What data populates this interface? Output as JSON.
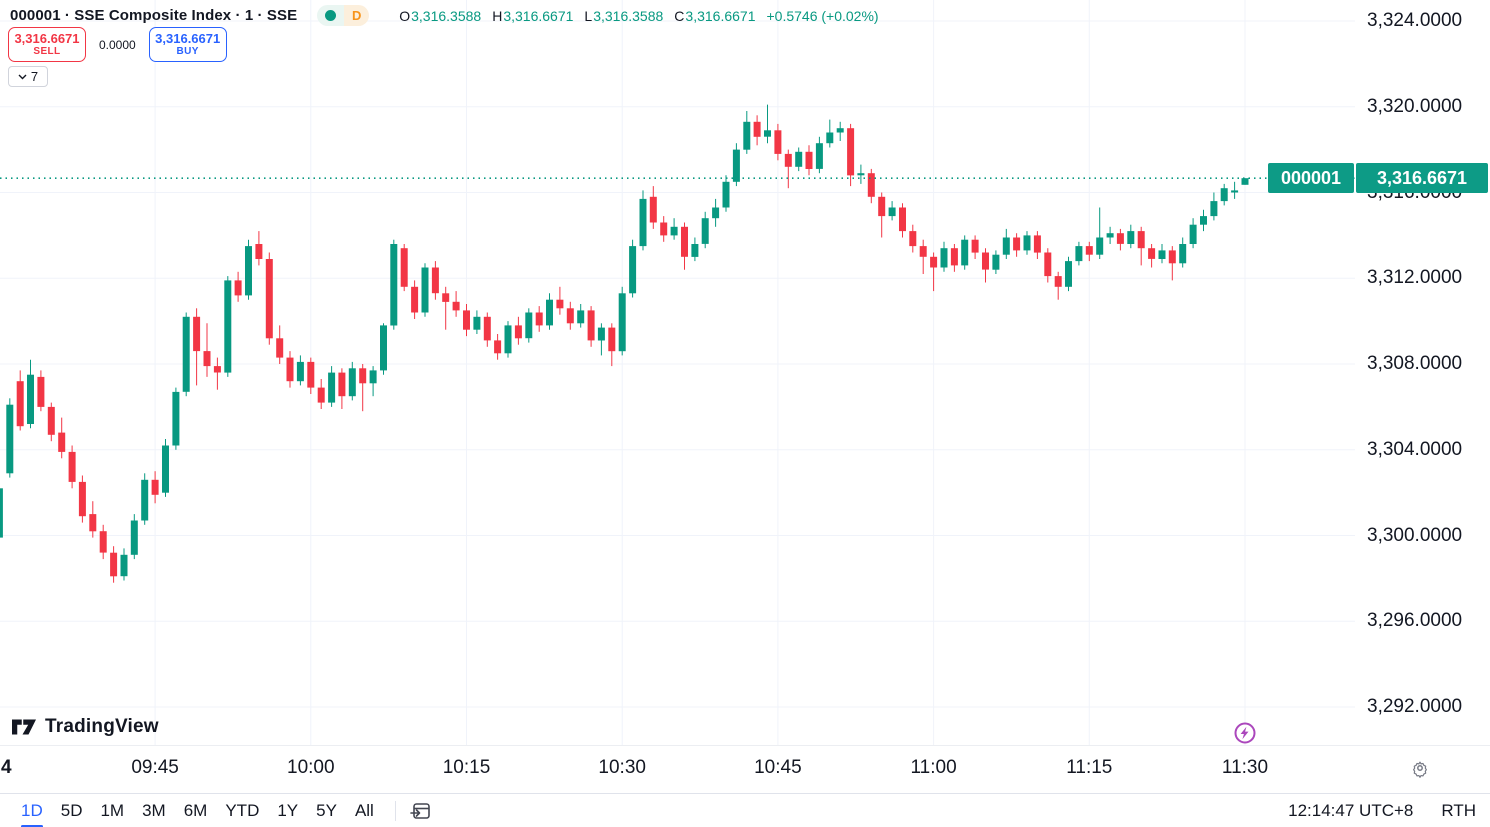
{
  "header": {
    "symbol_title": "000001 · SSE Composite Index · 1 · SSE",
    "interval_badge": "D",
    "ohlc_items": [
      {
        "k": "O",
        "v": "3,316.3588"
      },
      {
        "k": "H",
        "v": "3,316.6671"
      },
      {
        "k": "L",
        "v": "3,316.3588"
      },
      {
        "k": "C",
        "v": "3,316.6671"
      }
    ],
    "change": "+0.5746 (+0.02%)"
  },
  "trade_panel": {
    "sell_price": "3,316.6671",
    "sell_label": "SELL",
    "spread": "0.0000",
    "buy_price": "3,316.6671",
    "buy_label": "BUY"
  },
  "drawings_dropdown": {
    "count": "7"
  },
  "price_axis": {
    "last_price_label": {
      "symbol": "000001",
      "price": "3,316.6671"
    }
  },
  "time_axis": {
    "partial_left_label": "4"
  },
  "logo": {
    "text": "TradingView"
  },
  "toolbar": {
    "ranges": [
      "1D",
      "5D",
      "1M",
      "3M",
      "6M",
      "YTD",
      "1Y",
      "5Y",
      "All"
    ],
    "active_range": "1D",
    "clock": "12:14:47 UTC+8",
    "session": "RTH"
  },
  "colors": {
    "up": "#089981",
    "down": "#f23645",
    "grid": "#f0f3fa",
    "accent_blue": "#2962ff",
    "sell_red": "#f23645",
    "badge_orange": "#f7931a",
    "label_teal": "#0d9b86",
    "lightning_purple": "#ab47bc",
    "text": "#131722",
    "muted": "#787b86"
  },
  "chart_data": {
    "type": "candlestick",
    "symbol": "000001",
    "name": "SSE Composite Index",
    "exchange": "SSE",
    "interval": "1",
    "session_start": "09:30",
    "interval_minutes": 1,
    "last_bar": {
      "time": "11:30",
      "open": 3316.3588,
      "high": 3316.6671,
      "low": 3316.3588,
      "close": 3316.6671,
      "change": 0.5746,
      "change_pct": 0.02
    },
    "ylim": [
      3292,
      3324
    ],
    "grid": true,
    "price_ticks": [
      {
        "value": 3324,
        "label": "3,324.0000"
      },
      {
        "value": 3320,
        "label": "3,320.0000"
      },
      {
        "value": 3316,
        "label": "3,316.0000"
      },
      {
        "value": 3312,
        "label": "3,312.0000"
      },
      {
        "value": 3308,
        "label": "3,308.0000"
      },
      {
        "value": 3304,
        "label": "3,304.0000"
      },
      {
        "value": 3300,
        "label": "3,300.0000"
      },
      {
        "value": 3296,
        "label": "3,296.0000"
      },
      {
        "value": 3292,
        "label": "3,292.0000"
      }
    ],
    "time_ticks": [
      {
        "minute": 15,
        "label": "09:45"
      },
      {
        "minute": 30,
        "label": "10:00"
      },
      {
        "minute": 45,
        "label": "10:15"
      },
      {
        "minute": 60,
        "label": "10:30"
      },
      {
        "minute": 75,
        "label": "10:45"
      },
      {
        "minute": 90,
        "label": "11:00"
      },
      {
        "minute": 105,
        "label": "11:15"
      },
      {
        "minute": 120,
        "label": "11:30"
      }
    ],
    "candles_format": [
      "open",
      "high",
      "low",
      "close"
    ],
    "candles": [
      [
        3299.9,
        3302.5,
        3299.6,
        3302.2
      ],
      [
        3302.9,
        3306.4,
        3302.7,
        3306.1
      ],
      [
        3307.2,
        3307.7,
        3304.9,
        3305.1
      ],
      [
        3305.2,
        3308.2,
        3305.0,
        3307.5
      ],
      [
        3307.4,
        3307.7,
        3305.8,
        3306.0
      ],
      [
        3306.0,
        3306.2,
        3304.4,
        3304.7
      ],
      [
        3304.8,
        3305.5,
        3303.6,
        3303.9
      ],
      [
        3303.9,
        3304.2,
        3302.2,
        3302.5
      ],
      [
        3302.5,
        3302.8,
        3300.6,
        3300.9
      ],
      [
        3301.0,
        3301.6,
        3299.9,
        3300.2
      ],
      [
        3300.2,
        3300.5,
        3298.9,
        3299.2
      ],
      [
        3299.2,
        3299.5,
        3297.8,
        3298.1
      ],
      [
        3298.1,
        3299.4,
        3297.9,
        3299.1
      ],
      [
        3299.1,
        3301.0,
        3298.9,
        3300.7
      ],
      [
        3300.7,
        3302.9,
        3300.5,
        3302.6
      ],
      [
        3302.6,
        3303.0,
        3301.5,
        3301.9
      ],
      [
        3302.0,
        3304.5,
        3301.8,
        3304.2
      ],
      [
        3304.2,
        3306.9,
        3304.0,
        3306.7
      ],
      [
        3306.7,
        3310.4,
        3306.5,
        3310.2
      ],
      [
        3310.2,
        3310.6,
        3307.0,
        3308.6
      ],
      [
        3308.6,
        3309.9,
        3307.4,
        3307.9
      ],
      [
        3307.9,
        3308.3,
        3306.8,
        3307.6
      ],
      [
        3307.6,
        3312.1,
        3307.4,
        3311.9
      ],
      [
        3311.9,
        3312.3,
        3310.9,
        3311.2
      ],
      [
        3311.2,
        3313.8,
        3311.0,
        3313.5
      ],
      [
        3313.6,
        3314.2,
        3312.6,
        3312.9
      ],
      [
        3312.9,
        3313.2,
        3308.9,
        3309.2
      ],
      [
        3309.2,
        3309.8,
        3308.0,
        3308.3
      ],
      [
        3308.3,
        3308.6,
        3306.9,
        3307.2
      ],
      [
        3307.2,
        3308.4,
        3307.0,
        3308.1
      ],
      [
        3308.1,
        3308.3,
        3306.6,
        3306.9
      ],
      [
        3306.9,
        3307.3,
        3305.9,
        3306.2
      ],
      [
        3306.2,
        3307.9,
        3306.0,
        3307.6
      ],
      [
        3307.6,
        3307.8,
        3305.9,
        3306.5
      ],
      [
        3306.5,
        3308.1,
        3306.3,
        3307.8
      ],
      [
        3307.8,
        3308.0,
        3305.8,
        3307.1
      ],
      [
        3307.1,
        3307.9,
        3306.5,
        3307.7
      ],
      [
        3307.7,
        3309.9,
        3307.5,
        3309.8
      ],
      [
        3309.8,
        3313.8,
        3309.6,
        3313.6
      ],
      [
        3313.4,
        3313.6,
        3311.4,
        3311.6
      ],
      [
        3311.6,
        3311.9,
        3310.1,
        3310.4
      ],
      [
        3310.4,
        3312.7,
        3310.2,
        3312.5
      ],
      [
        3312.5,
        3312.8,
        3311.0,
        3311.3
      ],
      [
        3311.3,
        3311.6,
        3309.6,
        3310.9
      ],
      [
        3310.9,
        3311.4,
        3310.2,
        3310.5
      ],
      [
        3310.5,
        3310.8,
        3309.3,
        3309.6
      ],
      [
        3309.6,
        3310.5,
        3309.4,
        3310.2
      ],
      [
        3310.2,
        3310.4,
        3308.8,
        3309.1
      ],
      [
        3309.1,
        3309.4,
        3308.2,
        3308.5
      ],
      [
        3308.5,
        3310.0,
        3308.3,
        3309.8
      ],
      [
        3309.8,
        3310.2,
        3308.9,
        3309.2
      ],
      [
        3309.2,
        3310.6,
        3309.0,
        3310.4
      ],
      [
        3310.4,
        3310.7,
        3309.5,
        3309.8
      ],
      [
        3309.8,
        3311.3,
        3309.6,
        3311.0
      ],
      [
        3311.0,
        3311.6,
        3310.3,
        3310.6
      ],
      [
        3310.6,
        3310.9,
        3309.6,
        3309.9
      ],
      [
        3309.9,
        3310.8,
        3309.7,
        3310.5
      ],
      [
        3310.5,
        3310.7,
        3308.8,
        3309.1
      ],
      [
        3309.1,
        3309.9,
        3308.4,
        3309.7
      ],
      [
        3309.7,
        3309.9,
        3307.9,
        3308.6
      ],
      [
        3308.6,
        3311.6,
        3308.4,
        3311.3
      ],
      [
        3311.3,
        3313.8,
        3311.1,
        3313.5
      ],
      [
        3313.5,
        3316.1,
        3313.3,
        3315.7
      ],
      [
        3315.8,
        3316.3,
        3314.3,
        3314.6
      ],
      [
        3314.6,
        3314.9,
        3313.7,
        3314.0
      ],
      [
        3314.0,
        3314.8,
        3313.8,
        3314.4
      ],
      [
        3314.4,
        3314.6,
        3312.4,
        3313.0
      ],
      [
        3313.0,
        3313.9,
        3312.8,
        3313.6
      ],
      [
        3313.6,
        3315.1,
        3313.4,
        3314.8
      ],
      [
        3314.8,
        3315.7,
        3314.4,
        3315.3
      ],
      [
        3315.3,
        3316.8,
        3315.1,
        3316.5
      ],
      [
        3316.5,
        3318.3,
        3316.3,
        3318.0
      ],
      [
        3318.0,
        3319.8,
        3317.8,
        3319.3
      ],
      [
        3319.3,
        3319.6,
        3318.2,
        3318.6
      ],
      [
        3318.6,
        3320.1,
        3318.3,
        3318.9
      ],
      [
        3318.9,
        3319.2,
        3317.5,
        3317.8
      ],
      [
        3317.8,
        3318.0,
        3316.2,
        3317.2
      ],
      [
        3317.2,
        3318.1,
        3317.0,
        3317.9
      ],
      [
        3317.9,
        3318.2,
        3316.8,
        3317.1
      ],
      [
        3317.1,
        3318.6,
        3316.9,
        3318.3
      ],
      [
        3318.3,
        3319.4,
        3318.1,
        3318.8
      ],
      [
        3318.8,
        3319.3,
        3318.4,
        3319.0
      ],
      [
        3319.0,
        3319.2,
        3316.3,
        3316.8
      ],
      [
        3316.8,
        3317.3,
        3316.4,
        3316.9
      ],
      [
        3316.9,
        3317.1,
        3315.5,
        3315.8
      ],
      [
        3315.8,
        3316.0,
        3313.9,
        3314.9
      ],
      [
        3314.9,
        3315.6,
        3314.7,
        3315.3
      ],
      [
        3315.3,
        3315.5,
        3313.9,
        3314.2
      ],
      [
        3314.2,
        3314.5,
        3313.2,
        3313.5
      ],
      [
        3313.5,
        3313.8,
        3312.2,
        3313.0
      ],
      [
        3313.0,
        3313.2,
        3311.4,
        3312.5
      ],
      [
        3312.5,
        3313.7,
        3312.3,
        3313.4
      ],
      [
        3313.4,
        3313.6,
        3312.3,
        3312.6
      ],
      [
        3312.6,
        3314.0,
        3312.4,
        3313.8
      ],
      [
        3313.8,
        3314.0,
        3312.9,
        3313.2
      ],
      [
        3313.2,
        3313.4,
        3311.8,
        3312.4
      ],
      [
        3312.4,
        3313.3,
        3312.2,
        3313.1
      ],
      [
        3313.1,
        3314.3,
        3312.9,
        3313.9
      ],
      [
        3313.9,
        3314.1,
        3313.0,
        3313.3
      ],
      [
        3313.3,
        3314.2,
        3313.1,
        3314.0
      ],
      [
        3314.0,
        3314.2,
        3312.9,
        3313.2
      ],
      [
        3313.2,
        3313.4,
        3311.8,
        3312.1
      ],
      [
        3312.1,
        3312.3,
        3311.0,
        3311.6
      ],
      [
        3311.6,
        3313.0,
        3311.4,
        3312.8
      ],
      [
        3312.8,
        3313.7,
        3312.6,
        3313.5
      ],
      [
        3313.5,
        3313.7,
        3312.8,
        3313.1
      ],
      [
        3313.1,
        3315.3,
        3312.9,
        3313.9
      ],
      [
        3313.9,
        3314.4,
        3313.6,
        3314.1
      ],
      [
        3314.1,
        3314.3,
        3313.3,
        3313.6
      ],
      [
        3313.6,
        3314.5,
        3313.4,
        3314.2
      ],
      [
        3314.2,
        3314.4,
        3312.6,
        3313.4
      ],
      [
        3313.4,
        3313.6,
        3312.5,
        3312.9
      ],
      [
        3312.9,
        3313.6,
        3312.7,
        3313.3
      ],
      [
        3313.3,
        3313.5,
        3311.9,
        3312.7
      ],
      [
        3312.7,
        3313.9,
        3312.5,
        3313.6
      ],
      [
        3313.6,
        3314.8,
        3313.4,
        3314.5
      ],
      [
        3314.5,
        3315.2,
        3314.2,
        3314.9
      ],
      [
        3314.9,
        3316.0,
        3314.7,
        3315.6
      ],
      [
        3315.6,
        3316.4,
        3315.4,
        3316.2
      ],
      [
        3316.0,
        3316.5,
        3315.7,
        3316.1
      ],
      [
        3316.3588,
        3316.6671,
        3316.3588,
        3316.6671
      ]
    ]
  }
}
